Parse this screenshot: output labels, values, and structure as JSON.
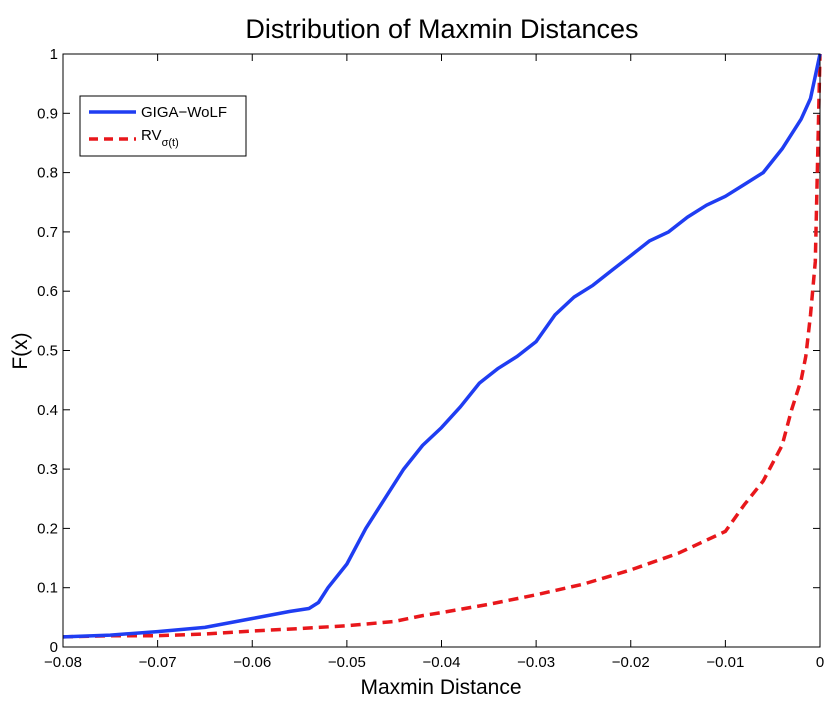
{
  "chart_data": {
    "type": "line",
    "title": "Distribution of Maxmin Distances",
    "xlabel": "Maxmin Distance",
    "ylabel": "F(x)",
    "xlim": [
      -0.08,
      0
    ],
    "ylim": [
      0,
      1
    ],
    "xticks": [
      -0.08,
      -0.07,
      -0.06,
      -0.05,
      -0.04,
      -0.03,
      -0.02,
      -0.01,
      0
    ],
    "xtick_labels": [
      "−0.08",
      "−0.07",
      "−0.06",
      "−0.05",
      "−0.04",
      "−0.03",
      "−0.02",
      "−0.01",
      "0"
    ],
    "yticks": [
      0,
      0.1,
      0.2,
      0.3,
      0.4,
      0.5,
      0.6,
      0.7,
      0.8,
      0.9,
      1
    ],
    "ytick_labels": [
      "0",
      "0.1",
      "0.2",
      "0.3",
      "0.4",
      "0.5",
      "0.6",
      "0.7",
      "0.8",
      "0.9",
      "1"
    ],
    "legend_position": "top-left",
    "series": [
      {
        "name": "GIGA−WoLF",
        "color": "#1f3df2",
        "style": "solid",
        "x": [
          -0.08,
          -0.075,
          -0.07,
          -0.065,
          -0.06,
          -0.056,
          -0.054,
          -0.053,
          -0.052,
          -0.05,
          -0.048,
          -0.046,
          -0.044,
          -0.042,
          -0.04,
          -0.038,
          -0.036,
          -0.034,
          -0.032,
          -0.03,
          -0.028,
          -0.026,
          -0.024,
          -0.022,
          -0.02,
          -0.018,
          -0.016,
          -0.014,
          -0.012,
          -0.01,
          -0.008,
          -0.006,
          -0.004,
          -0.003,
          -0.002,
          -0.001,
          0
        ],
        "y": [
          0.017,
          0.02,
          0.026,
          0.033,
          0.048,
          0.06,
          0.065,
          0.075,
          0.1,
          0.14,
          0.2,
          0.25,
          0.3,
          0.34,
          0.37,
          0.405,
          0.445,
          0.47,
          0.49,
          0.515,
          0.56,
          0.59,
          0.61,
          0.635,
          0.66,
          0.685,
          0.7,
          0.725,
          0.745,
          0.76,
          0.78,
          0.8,
          0.84,
          0.865,
          0.89,
          0.925,
          1.0
        ]
      },
      {
        "name": "RV",
        "name_sub": "σ(t)",
        "color": "#e8171b",
        "style": "dashed",
        "x": [
          -0.08,
          -0.075,
          -0.07,
          -0.065,
          -0.06,
          -0.055,
          -0.05,
          -0.045,
          -0.042,
          -0.04,
          -0.035,
          -0.03,
          -0.025,
          -0.02,
          -0.015,
          -0.01,
          -0.008,
          -0.006,
          -0.004,
          -0.003,
          -0.002,
          -0.0015,
          -0.001,
          -0.0005,
          0
        ],
        "y": [
          0.017,
          0.019,
          0.019,
          0.022,
          0.027,
          0.031,
          0.036,
          0.043,
          0.053,
          0.058,
          0.072,
          0.088,
          0.106,
          0.13,
          0.158,
          0.195,
          0.24,
          0.28,
          0.34,
          0.4,
          0.45,
          0.49,
          0.56,
          0.65,
          1.0
        ]
      }
    ]
  }
}
